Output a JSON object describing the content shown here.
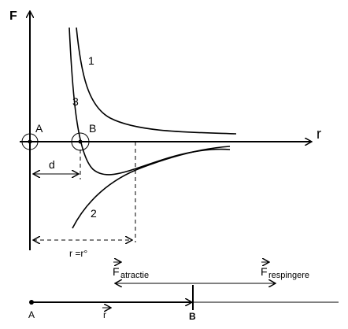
{
  "axes": {
    "y_label": "F",
    "x_label": "r"
  },
  "curves": [
    {
      "label": "1"
    },
    {
      "label": "3"
    },
    {
      "label": "2"
    }
  ],
  "points": [
    {
      "label": "A"
    },
    {
      "label": "B"
    }
  ],
  "dimensions": {
    "d": "d",
    "equilibrium": "r =r°"
  },
  "bottom": {
    "attraction": {
      "symbol": "F",
      "subscript": "atractie"
    },
    "repulsion": {
      "symbol": "F",
      "subscript": "respingere"
    },
    "point_a": "A",
    "vector": "r",
    "point_b": "B"
  }
}
